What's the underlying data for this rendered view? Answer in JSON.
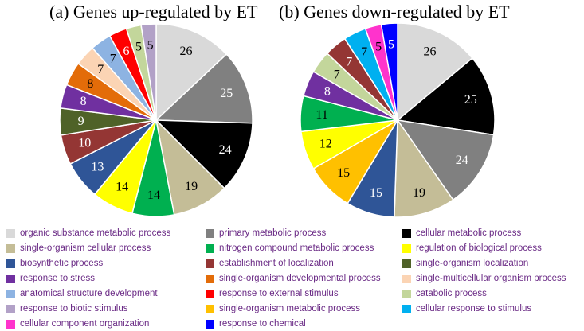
{
  "chart_data": [
    {
      "type": "pie",
      "title": "(a) Genes up-regulated by ET",
      "slices": [
        {
          "category": "organic substance metabolic process",
          "value": 26
        },
        {
          "category": "primary metabolic process",
          "value": 25
        },
        {
          "category": "cellular metabolic process",
          "value": 24
        },
        {
          "category": "single-organism cellular process",
          "value": 19
        },
        {
          "category": "nitrogen compound metabolic process",
          "value": 14
        },
        {
          "category": "regulation of biological process",
          "value": 14
        },
        {
          "category": "biosynthetic process",
          "value": 13
        },
        {
          "category": "establishment of localization",
          "value": 10
        },
        {
          "category": "single-organism localization",
          "value": 9
        },
        {
          "category": "response to stress",
          "value": 8
        },
        {
          "category": "single-organism developmental process",
          "value": 8
        },
        {
          "category": "single-multicellular organism process",
          "value": 7
        },
        {
          "category": "anatomical structure development",
          "value": 7
        },
        {
          "category": "response to external stimulus",
          "value": 6
        },
        {
          "category": "catabolic process",
          "value": 5
        },
        {
          "category": "response to biotic stimulus",
          "value": 5
        }
      ]
    },
    {
      "type": "pie",
      "title": "(b) Genes down-regulated by ET",
      "slices": [
        {
          "category": "organic substance metabolic process",
          "value": 26
        },
        {
          "category": "cellular metabolic process",
          "value": 25
        },
        {
          "category": "primary metabolic process",
          "value": 24
        },
        {
          "category": "single-organism cellular process",
          "value": 19
        },
        {
          "category": "biosynthetic process",
          "value": 15
        },
        {
          "category": "single-organism metabolic process",
          "value": 15
        },
        {
          "category": "regulation of biological process",
          "value": 12
        },
        {
          "category": "nitrogen compound metabolic process",
          "value": 11
        },
        {
          "category": "response to stress",
          "value": 8
        },
        {
          "category": "catabolic process",
          "value": 7
        },
        {
          "category": "establishment of localization",
          "value": 7
        },
        {
          "category": "cellular response to stimulus",
          "value": 7
        },
        {
          "category": "cellular component organization",
          "value": 5
        },
        {
          "category": "response to chemical",
          "value": 5
        }
      ]
    }
  ],
  "legend": [
    {
      "label": "organic substance metabolic process",
      "color": "#d9d9d9"
    },
    {
      "label": "primary metabolic process",
      "color": "#808080"
    },
    {
      "label": "cellular metabolic process",
      "color": "#000000"
    },
    {
      "label": "single-organism cellular process",
      "color": "#c4bd97"
    },
    {
      "label": "nitrogen compound metabolic process",
      "color": "#00b050"
    },
    {
      "label": "regulation of biological process",
      "color": "#ffff00"
    },
    {
      "label": "biosynthetic process",
      "color": "#2f5597"
    },
    {
      "label": "establishment of localization",
      "color": "#943634"
    },
    {
      "label": "single-organism localization",
      "color": "#4f6228"
    },
    {
      "label": "response to stress",
      "color": "#7030a0"
    },
    {
      "label": "single-organism developmental process",
      "color": "#e36c09"
    },
    {
      "label": "single-multicellular organism process",
      "color": "#fbd4b4"
    },
    {
      "label": "anatomical structure development",
      "color": "#8db3e2"
    },
    {
      "label": "response to external stimulus",
      "color": "#ff0000"
    },
    {
      "label": "catabolic process",
      "color": "#c3d69b"
    },
    {
      "label": "response to biotic stimulus",
      "color": "#b2a1c7"
    },
    {
      "label": "single-organism metabolic process",
      "color": "#ffc000"
    },
    {
      "label": "cellular response to stimulus",
      "color": "#00b0f0"
    },
    {
      "label": "cellular component organization",
      "color": "#ff33cc"
    },
    {
      "label": "response to chemical",
      "color": "#0000ff"
    }
  ]
}
